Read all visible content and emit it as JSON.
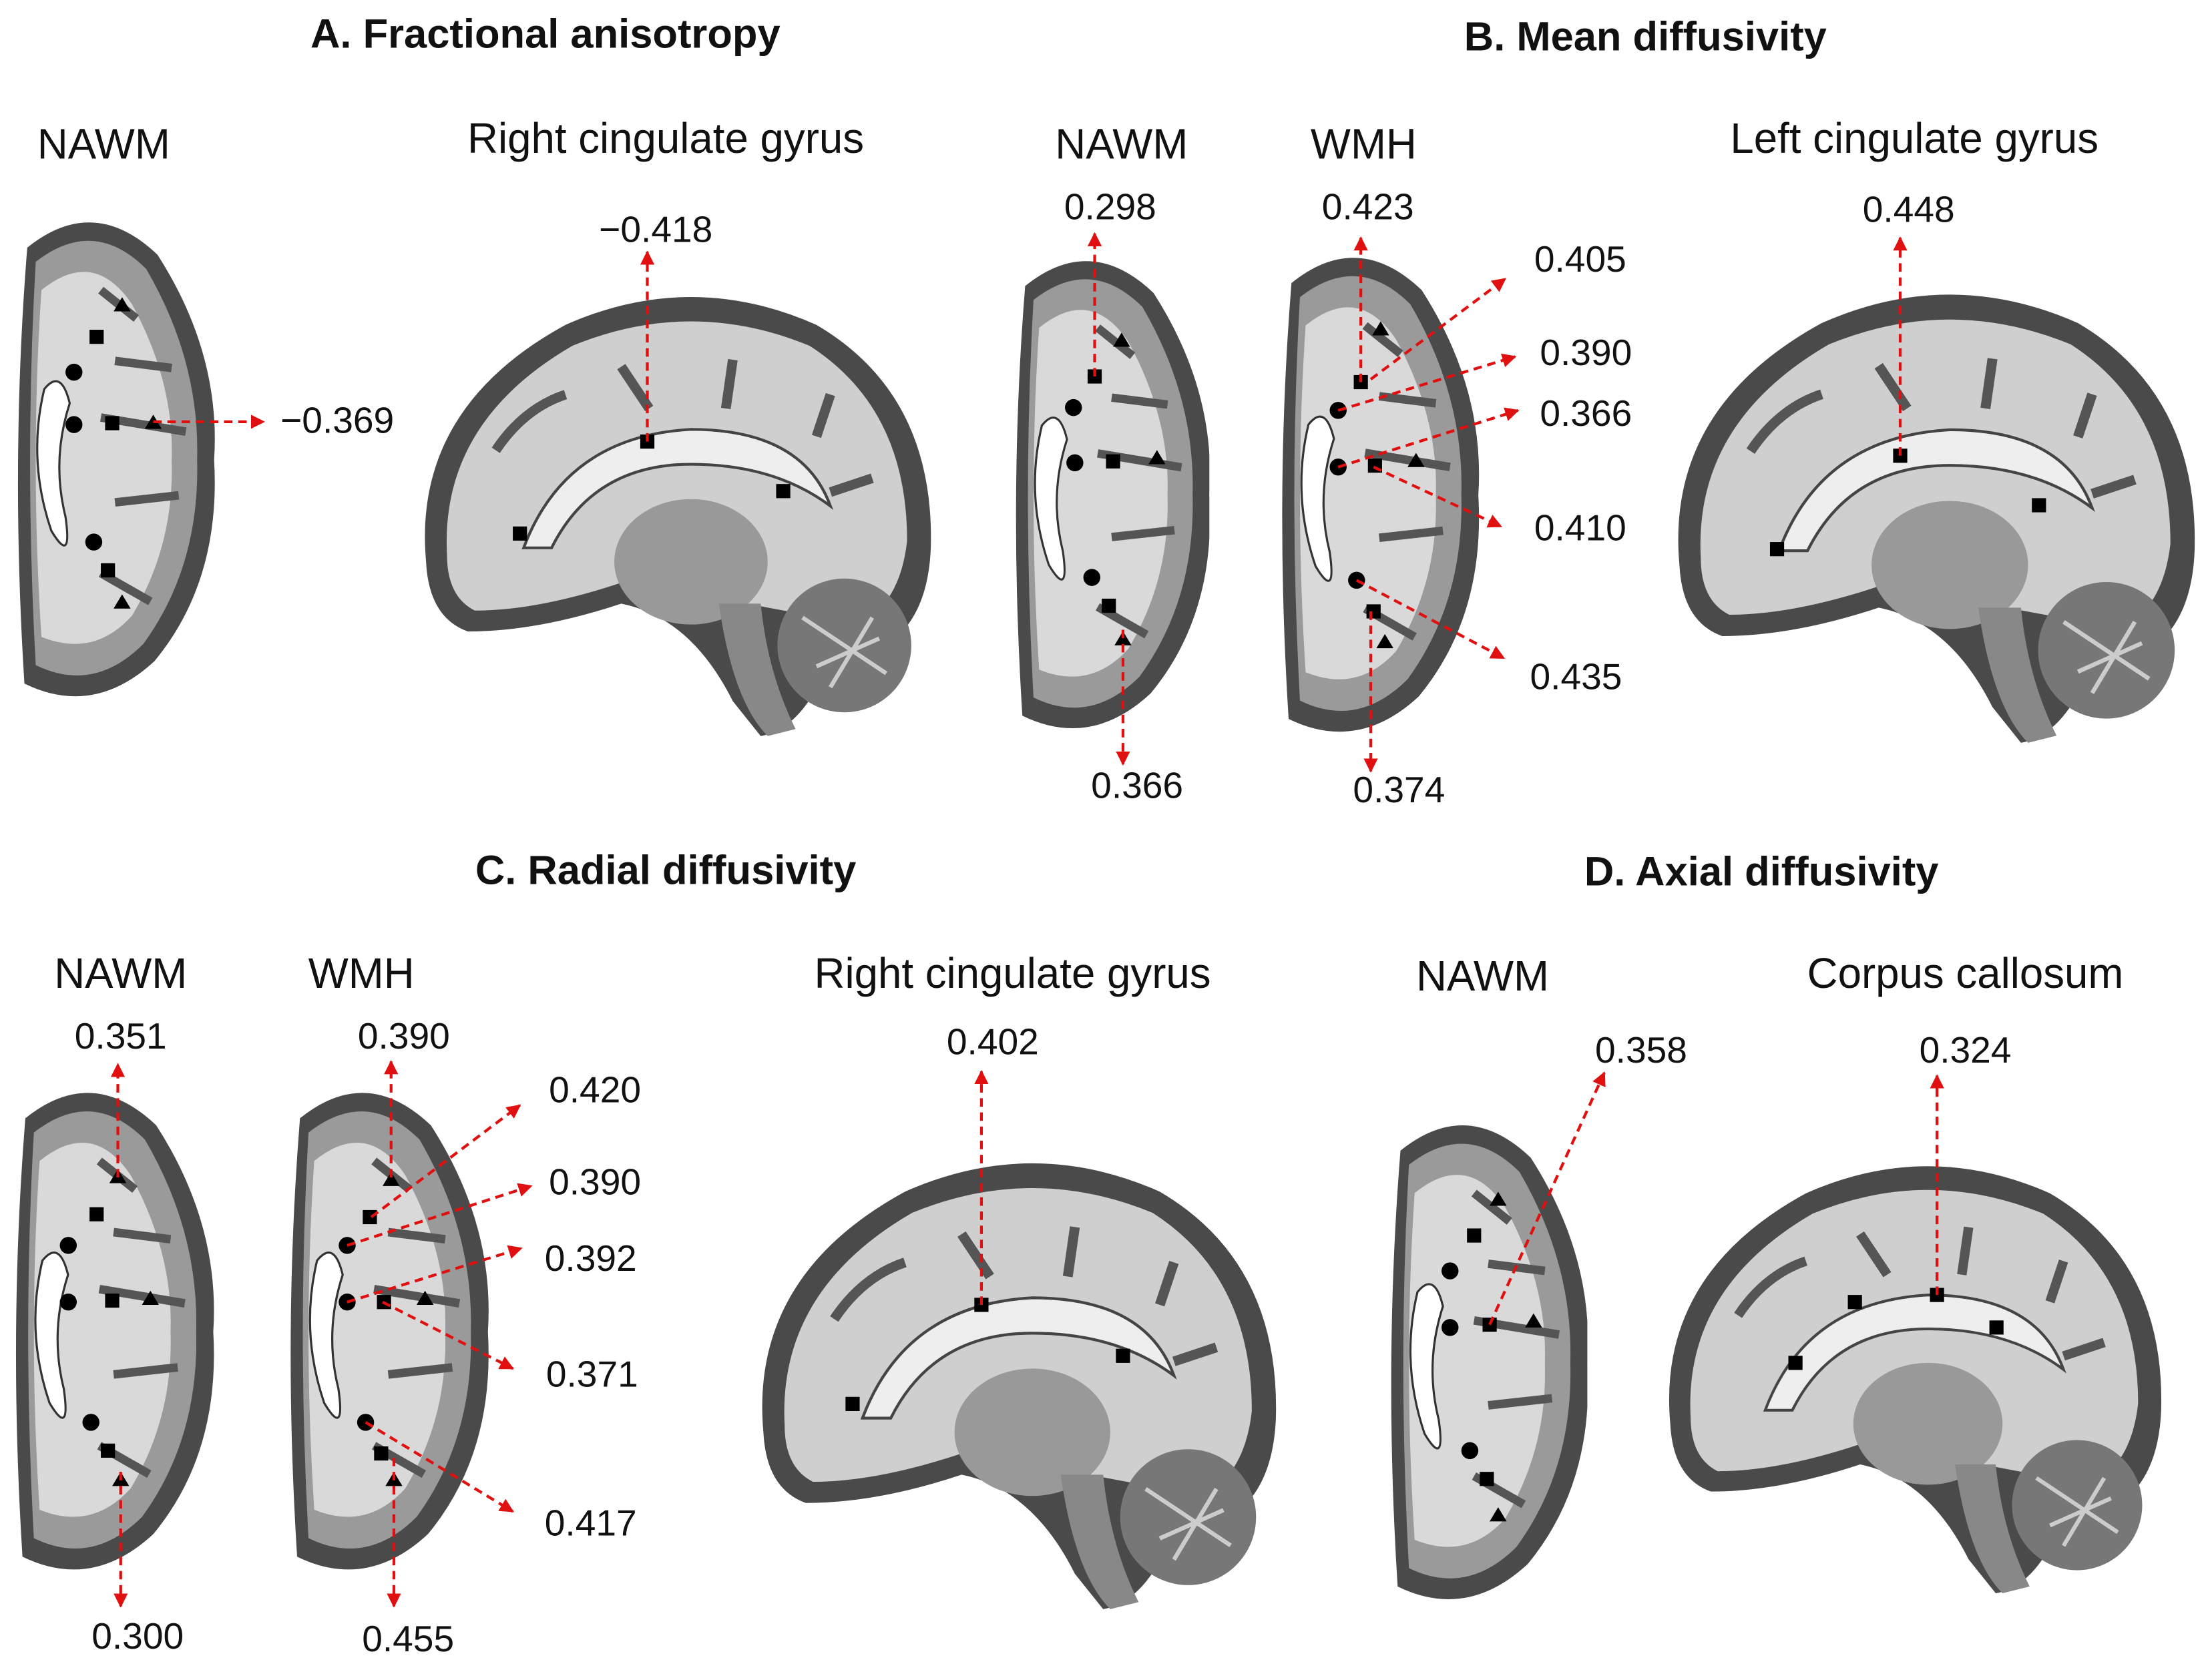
{
  "panels": [
    {
      "title": "A. Fractional anisotropy",
      "images": [
        {
          "label": "NAWM",
          "values": [
            "−0.369"
          ]
        },
        {
          "label": "Right cingulate gyrus",
          "values": [
            "−0.418"
          ]
        }
      ]
    },
    {
      "title": "B. Mean diffusivity",
      "images": [
        {
          "label": "NAWM",
          "values": [
            "0.298",
            "0.366"
          ]
        },
        {
          "label": "WMH",
          "values": [
            "0.423",
            "0.405",
            "0.390",
            "0.366",
            "0.410",
            "0.435",
            "0.374"
          ]
        },
        {
          "label": "Left cingulate gyrus",
          "values": [
            "0.448"
          ]
        }
      ]
    },
    {
      "title": "C. Radial diffusivity",
      "images": [
        {
          "label": "NAWM",
          "values": [
            "0.351",
            "0.300"
          ]
        },
        {
          "label": "WMH",
          "values": [
            "0.390",
            "0.420",
            "0.390",
            "0.392",
            "0.371",
            "0.417",
            "0.455"
          ]
        },
        {
          "label": "Right cingulate gyrus",
          "values": [
            "0.402"
          ]
        }
      ]
    },
    {
      "title": "D. Axial diffusivity",
      "images": [
        {
          "label": "NAWM",
          "values": [
            "0.358"
          ]
        },
        {
          "label": "Corpus callosum",
          "values": [
            "0.324"
          ]
        }
      ]
    }
  ]
}
